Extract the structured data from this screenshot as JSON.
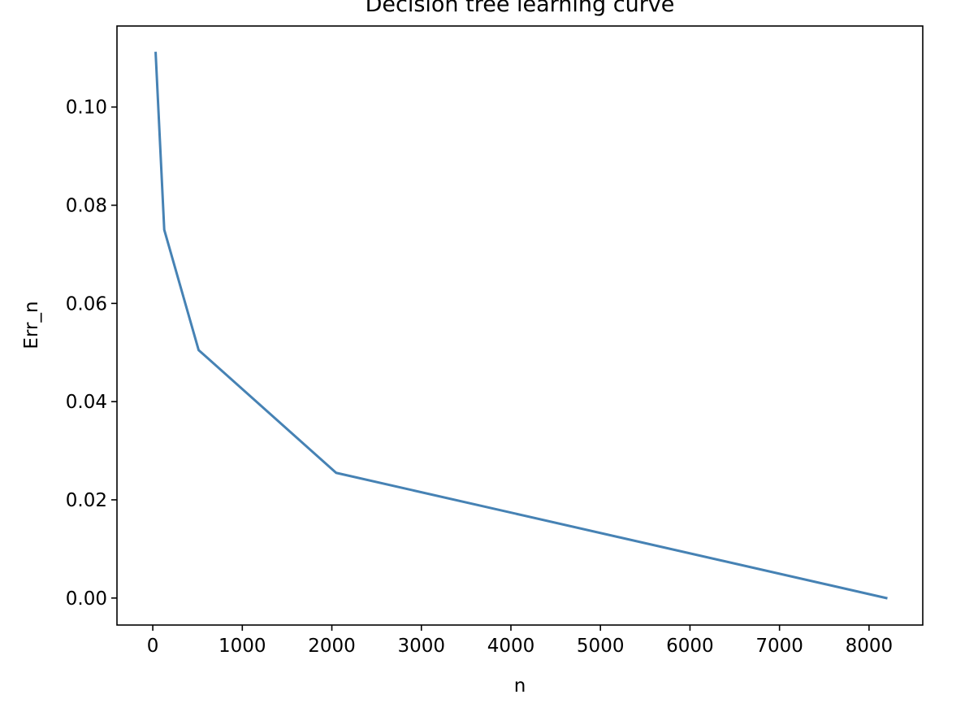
{
  "chart_data": {
    "type": "line",
    "title": "Decision tree learning curve",
    "xlabel": "n",
    "ylabel": "Err_n",
    "xlim": [
      -400,
      8600
    ],
    "ylim": [
      -0.0055,
      0.1165
    ],
    "x_ticks": [
      0,
      1000,
      2000,
      3000,
      4000,
      5000,
      6000,
      7000,
      8000
    ],
    "x_tick_labels": [
      "0",
      "1000",
      "2000",
      "3000",
      "4000",
      "5000",
      "6000",
      "7000",
      "8000"
    ],
    "y_ticks": [
      0.0,
      0.02,
      0.04,
      0.06,
      0.08,
      0.1
    ],
    "y_tick_labels": [
      "0.00",
      "0.02",
      "0.04",
      "0.06",
      "0.08",
      "0.10"
    ],
    "grid": false,
    "legend": "none",
    "line_color": "#4682b4",
    "series": [
      {
        "x": [
          32,
          128,
          512,
          2048,
          8192
        ],
        "values": [
          0.111,
          0.075,
          0.0505,
          0.0255,
          0.0
        ]
      }
    ]
  }
}
